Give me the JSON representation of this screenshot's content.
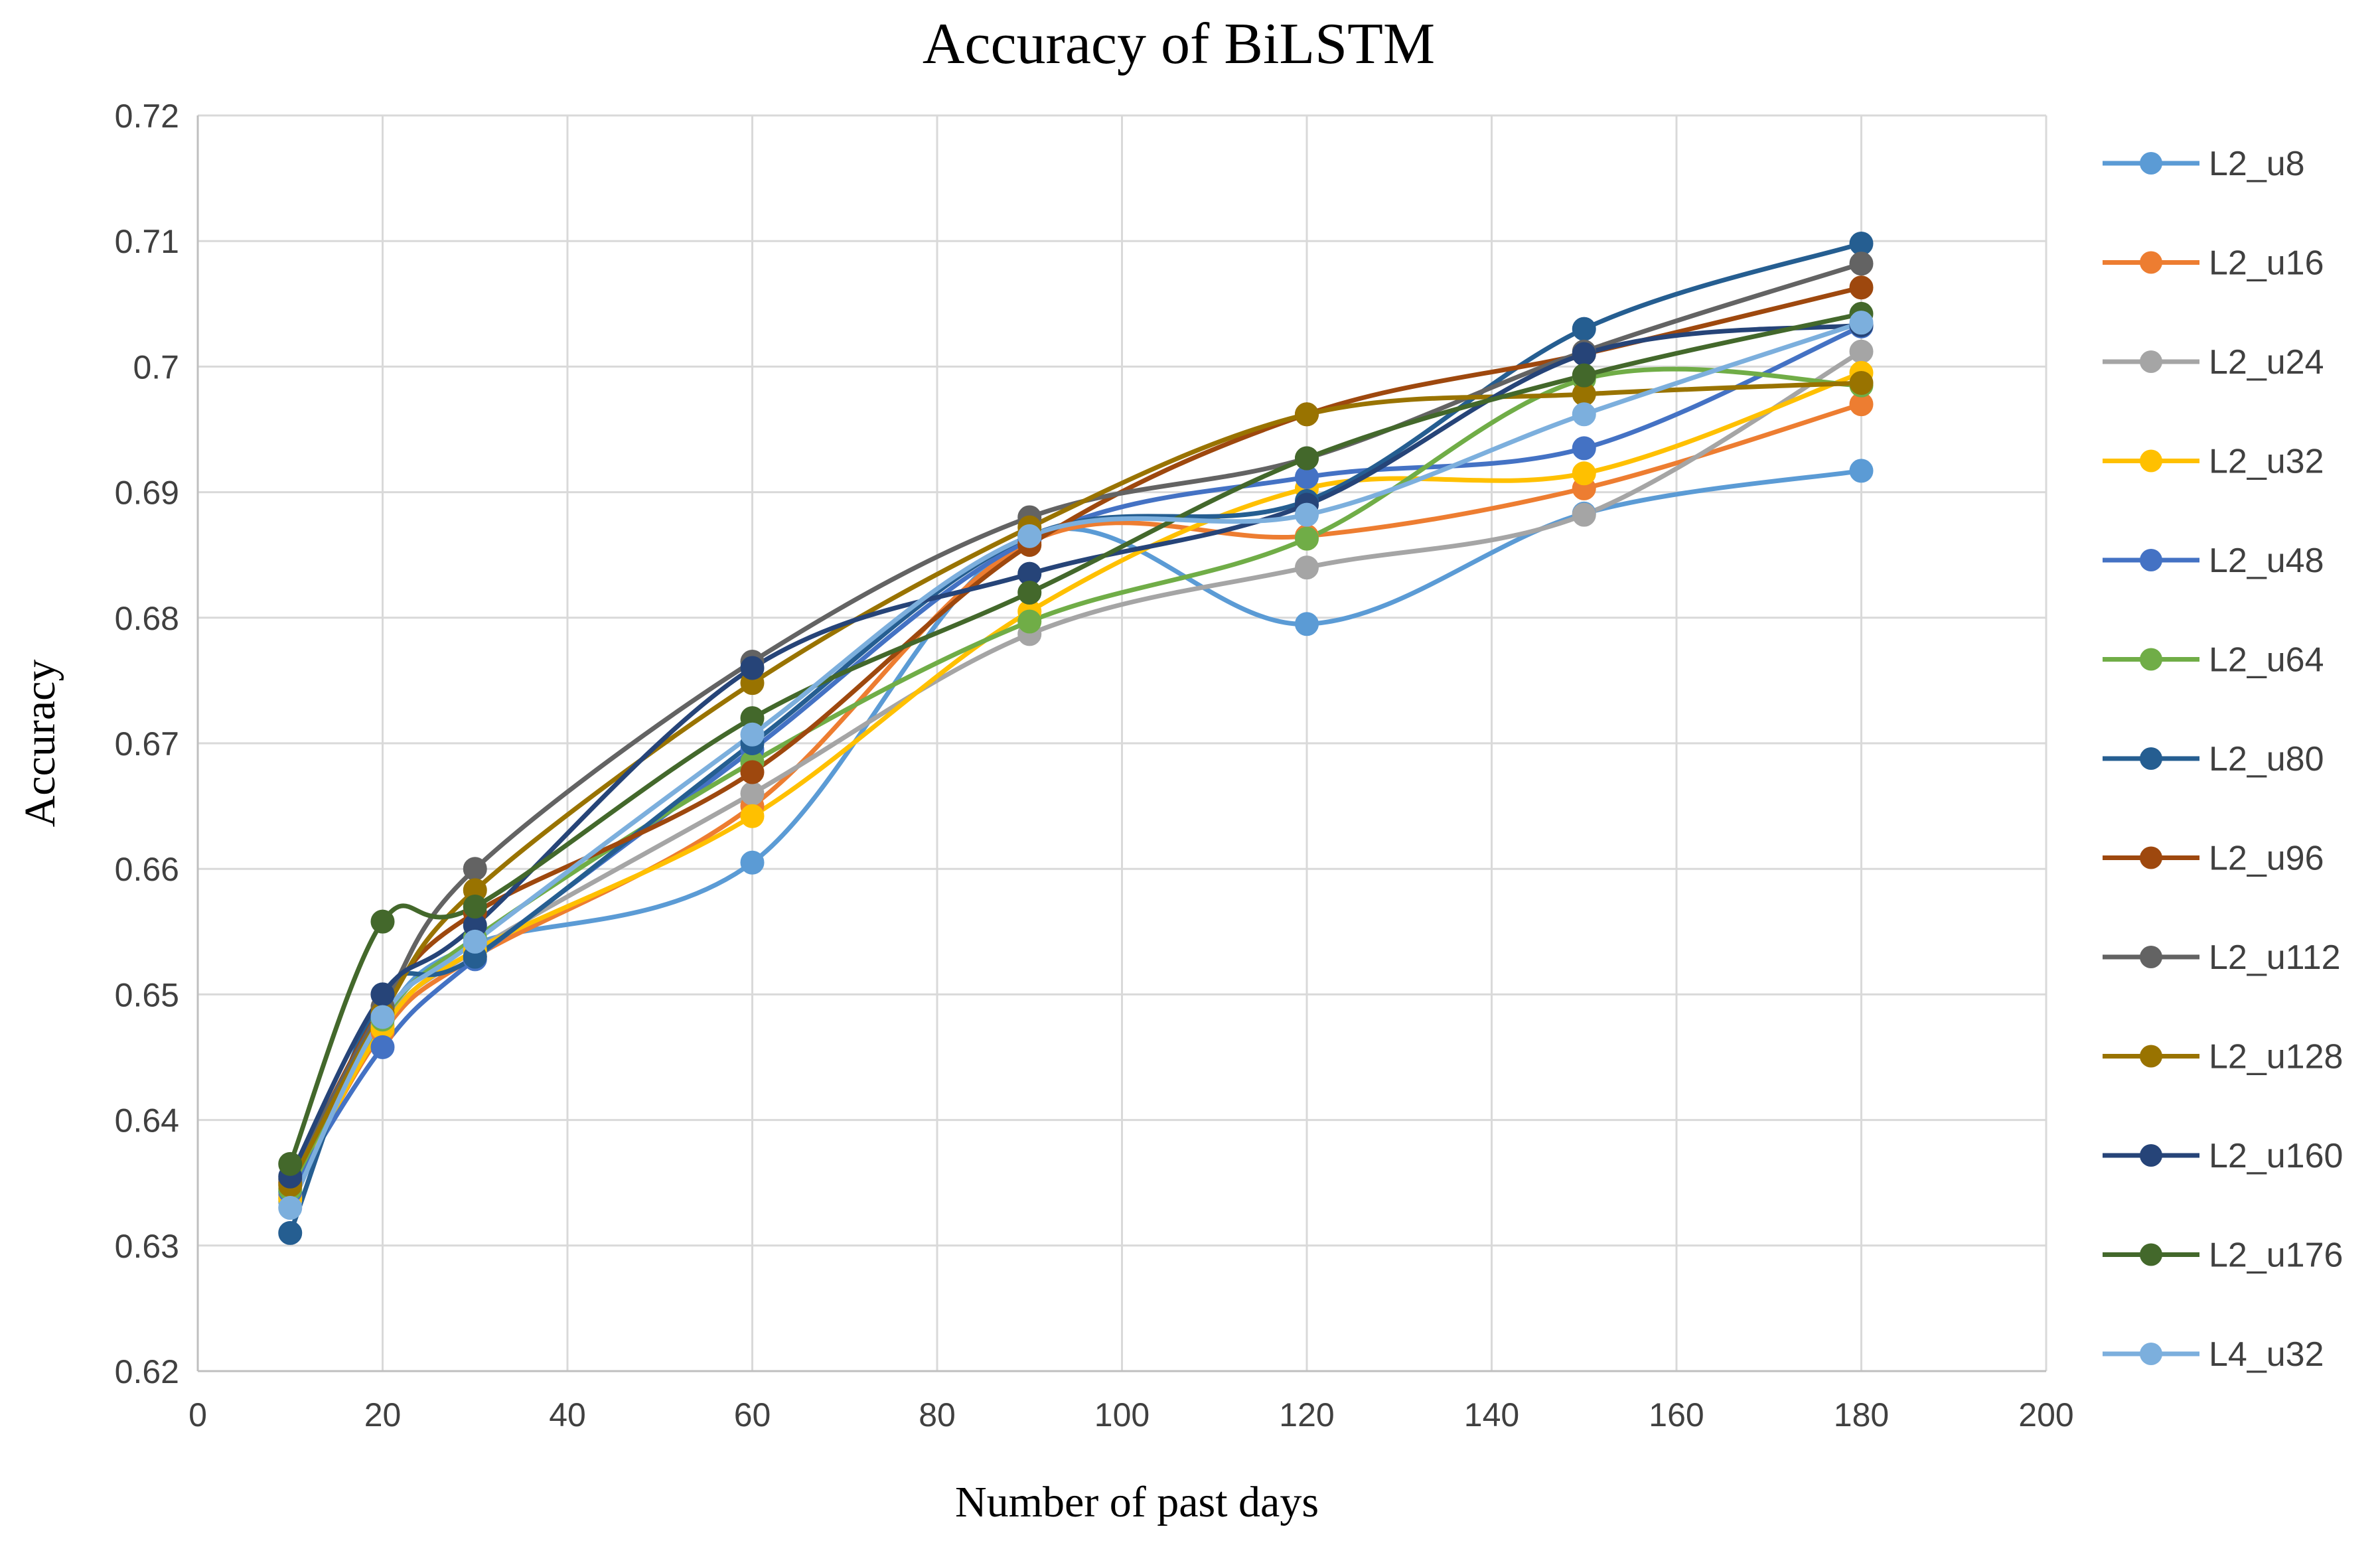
{
  "chart_data": {
    "type": "line",
    "title": "Accuracy of BiLSTM",
    "xlabel": "Number of past days",
    "ylabel": "Accuracy",
    "xlim": [
      0,
      200
    ],
    "ylim": [
      0.62,
      0.72
    ],
    "x_ticks": [
      0,
      20,
      40,
      60,
      80,
      100,
      120,
      140,
      160,
      180,
      200
    ],
    "x_tick_labels": [
      "0",
      "20",
      "40",
      "60",
      "80",
      "100",
      "120",
      "140",
      "160",
      "180",
      "200"
    ],
    "y_ticks": [
      0.62,
      0.63,
      0.64,
      0.65,
      0.66,
      0.67,
      0.68,
      0.69,
      0.7,
      0.71,
      0.72
    ],
    "y_tick_labels": [
      "0.62",
      "0.63",
      "0.64",
      "0.65",
      "0.66",
      "0.67",
      "0.68",
      "0.69",
      "0.7",
      "0.71",
      "0.72"
    ],
    "grid": true,
    "legend_position": "right",
    "x": [
      10,
      20,
      30,
      60,
      90,
      120,
      150,
      180
    ],
    "series": [
      {
        "name": "L2_u8",
        "color": "#5B9BD5",
        "values": [
          0.6335,
          0.648,
          0.654,
          0.6605,
          0.6865,
          0.6795,
          0.6883,
          0.6917
        ]
      },
      {
        "name": "L2_u16",
        "color": "#ED7D31",
        "values": [
          0.634,
          0.647,
          0.653,
          0.665,
          0.686,
          0.6865,
          0.6903,
          0.697
        ]
      },
      {
        "name": "L2_u24",
        "color": "#A5A5A5",
        "values": [
          0.6338,
          0.6475,
          0.6535,
          0.666,
          0.6787,
          0.684,
          0.6882,
          0.7012
        ]
      },
      {
        "name": "L2_u32",
        "color": "#FFC000",
        "values": [
          0.6337,
          0.6473,
          0.6535,
          0.6642,
          0.6805,
          0.6903,
          0.6915,
          0.6995
        ]
      },
      {
        "name": "L2_u48",
        "color": "#4472C4",
        "values": [
          0.6343,
          0.6458,
          0.6528,
          0.6695,
          0.6862,
          0.6912,
          0.6935,
          0.7032
        ]
      },
      {
        "name": "L2_u64",
        "color": "#70AD47",
        "values": [
          0.6345,
          0.648,
          0.6545,
          0.6685,
          0.6797,
          0.6863,
          0.699,
          0.6985
        ]
      },
      {
        "name": "L2_u80",
        "color": "#255E91",
        "values": [
          0.631,
          0.65,
          0.653,
          0.67,
          0.6865,
          0.6893,
          0.703,
          0.7098
        ]
      },
      {
        "name": "L2_u96",
        "color": "#9E480E",
        "values": [
          0.635,
          0.649,
          0.6565,
          0.6677,
          0.6858,
          0.6962,
          0.701,
          0.7063
        ]
      },
      {
        "name": "L2_u112",
        "color": "#636363",
        "values": [
          0.6353,
          0.649,
          0.66,
          0.6765,
          0.688,
          0.6927,
          0.7012,
          0.7082
        ]
      },
      {
        "name": "L2_u128",
        "color": "#997300",
        "values": [
          0.6348,
          0.6485,
          0.6583,
          0.6748,
          0.6872,
          0.6962,
          0.6978,
          0.6987
        ]
      },
      {
        "name": "L2_u160",
        "color": "#264478",
        "values": [
          0.6355,
          0.65,
          0.6555,
          0.676,
          0.6835,
          0.689,
          0.701,
          0.7033
        ]
      },
      {
        "name": "L2_u176",
        "color": "#43682B",
        "values": [
          0.6365,
          0.6558,
          0.657,
          0.672,
          0.682,
          0.6927,
          0.6993,
          0.7042
        ]
      },
      {
        "name": "L4_u32",
        "color": "#7CAFDD",
        "values": [
          0.633,
          0.6482,
          0.6542,
          0.6707,
          0.6865,
          0.6882,
          0.6962,
          0.7035
        ]
      }
    ]
  }
}
